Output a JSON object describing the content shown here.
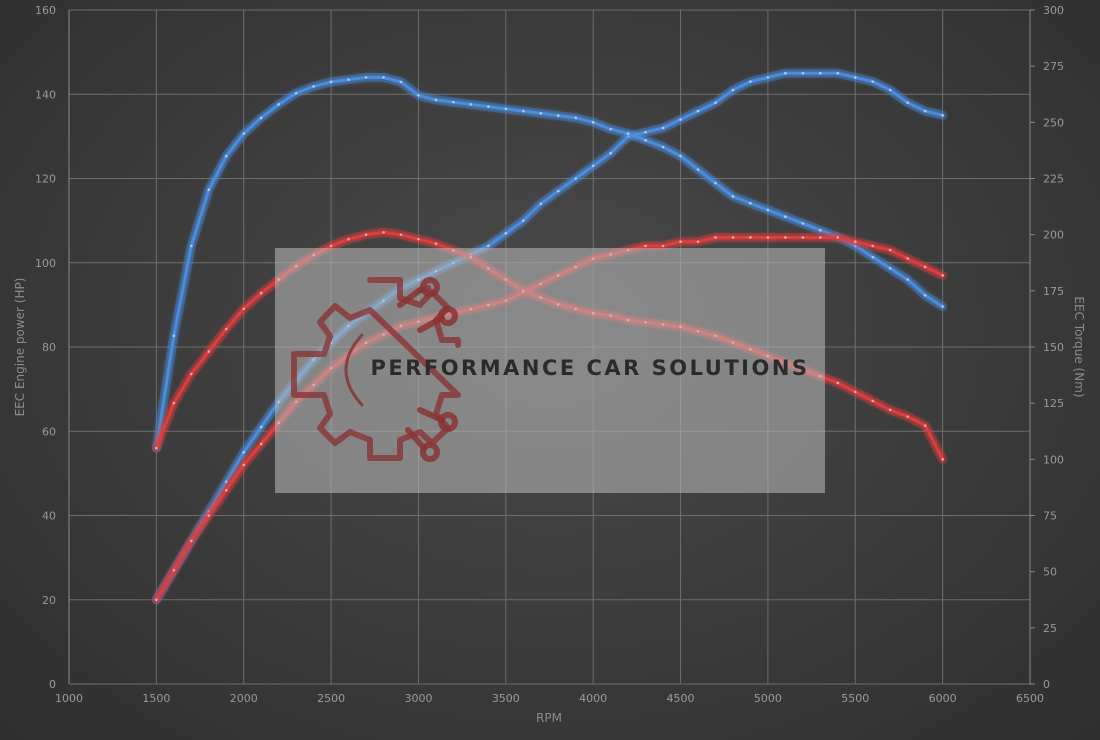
{
  "chart_data": {
    "type": "line",
    "xlabel": "RPM",
    "ylabel_left": "EEC Engine power (HP)",
    "ylabel_right": "EEC Torque (Nm)",
    "xlim": [
      1000,
      6500
    ],
    "xticks": [
      1000,
      1500,
      2000,
      2500,
      3000,
      3500,
      4000,
      4500,
      5000,
      5500,
      6000,
      6500
    ],
    "ylim_left": [
      0,
      160
    ],
    "yticks_left": [
      0,
      20,
      40,
      60,
      80,
      100,
      120,
      140,
      160
    ],
    "ylim_right": [
      0,
      300
    ],
    "yticks_right": [
      0,
      25,
      50,
      75,
      100,
      125,
      150,
      175,
      200,
      225,
      250,
      275,
      300
    ],
    "grid": true,
    "series": [
      {
        "axis": "left",
        "color": "#4a8ede",
        "x": [
          1500,
          1600,
          1700,
          1800,
          1900,
          2000,
          2100,
          2200,
          2300,
          2400,
          2500,
          2600,
          2700,
          2800,
          2900,
          3000,
          3100,
          3200,
          3300,
          3400,
          3500,
          3600,
          3700,
          3800,
          3900,
          4000,
          4100,
          4200,
          4300,
          4400,
          4500,
          4600,
          4700,
          4800,
          4900,
          5000,
          5100,
          5200,
          5300,
          5400,
          5500,
          5600,
          5700,
          5800,
          5900,
          6000
        ],
        "y": [
          20,
          27,
          34,
          41,
          48,
          55,
          61,
          67,
          72,
          77,
          81,
          85,
          88,
          91,
          94,
          96,
          98,
          100,
          102,
          104,
          107,
          110,
          114,
          117,
          120,
          123,
          126,
          130,
          131,
          132,
          134,
          136,
          138,
          141,
          143,
          144,
          145,
          145,
          145,
          145,
          144,
          143,
          141,
          138,
          136,
          135
        ]
      },
      {
        "axis": "right",
        "color": "#4a8ede",
        "x": [
          1500,
          1600,
          1700,
          1800,
          1900,
          2000,
          2100,
          2200,
          2300,
          2400,
          2500,
          2600,
          2700,
          2800,
          2900,
          3000,
          3100,
          3200,
          3300,
          3400,
          3500,
          3600,
          3700,
          3800,
          3900,
          4000,
          4100,
          4200,
          4300,
          4400,
          4500,
          4600,
          4700,
          4800,
          4900,
          5000,
          5100,
          5200,
          5300,
          5400,
          5500,
          5600,
          5700,
          5800,
          5900,
          6000
        ],
        "y": [
          105,
          155,
          195,
          220,
          235,
          245,
          252,
          258,
          263,
          266,
          268,
          269,
          270,
          270,
          268,
          262,
          260,
          259,
          258,
          257,
          256,
          255,
          254,
          253,
          252,
          250,
          247,
          245,
          242,
          239,
          235,
          229,
          223,
          217,
          214,
          211,
          208,
          205,
          202,
          199,
          195,
          190,
          185,
          180,
          173,
          168
        ]
      },
      {
        "axis": "left",
        "color": "#e03c3c",
        "x": [
          1500,
          1600,
          1700,
          1800,
          1900,
          2000,
          2100,
          2200,
          2300,
          2400,
          2500,
          2600,
          2700,
          2800,
          2900,
          3000,
          3100,
          3200,
          3300,
          3400,
          3500,
          3600,
          3700,
          3800,
          3900,
          4000,
          4100,
          4200,
          4300,
          4400,
          4500,
          4600,
          4700,
          4800,
          4900,
          5000,
          5100,
          5200,
          5300,
          5400,
          5500,
          5600,
          5700,
          5800,
          5900,
          6000
        ],
        "y": [
          20,
          27,
          34,
          40,
          46,
          52,
          57,
          62,
          67,
          71,
          75,
          78,
          81,
          83,
          85,
          86,
          87,
          88,
          89,
          90,
          91,
          93,
          95,
          97,
          99,
          101,
          102,
          103,
          104,
          104,
          105,
          105,
          106,
          106,
          106,
          106,
          106,
          106,
          106,
          106,
          105,
          104,
          103,
          101,
          99,
          97
        ]
      },
      {
        "axis": "right",
        "color": "#e03c3c",
        "x": [
          1500,
          1600,
          1700,
          1800,
          1900,
          2000,
          2100,
          2200,
          2300,
          2400,
          2500,
          2600,
          2700,
          2800,
          2900,
          3000,
          3100,
          3200,
          3300,
          3400,
          3500,
          3600,
          3700,
          3800,
          3900,
          4000,
          4100,
          4200,
          4300,
          4400,
          4500,
          4600,
          4700,
          4800,
          4900,
          5000,
          5100,
          5200,
          5300,
          5400,
          5500,
          5600,
          5700,
          5800,
          5900,
          6000
        ],
        "y": [
          105,
          125,
          138,
          148,
          158,
          167,
          174,
          180,
          186,
          191,
          195,
          198,
          200,
          201,
          200,
          198,
          196,
          193,
          190,
          185,
          180,
          175,
          172,
          169,
          167,
          165,
          164,
          162,
          161,
          160,
          159,
          157,
          155,
          152,
          149,
          146,
          143,
          140,
          137,
          134,
          130,
          126,
          122,
          119,
          115,
          100
        ]
      }
    ]
  },
  "watermark": {
    "text": "PERFORMANCE CAR SOLUTIONS"
  }
}
